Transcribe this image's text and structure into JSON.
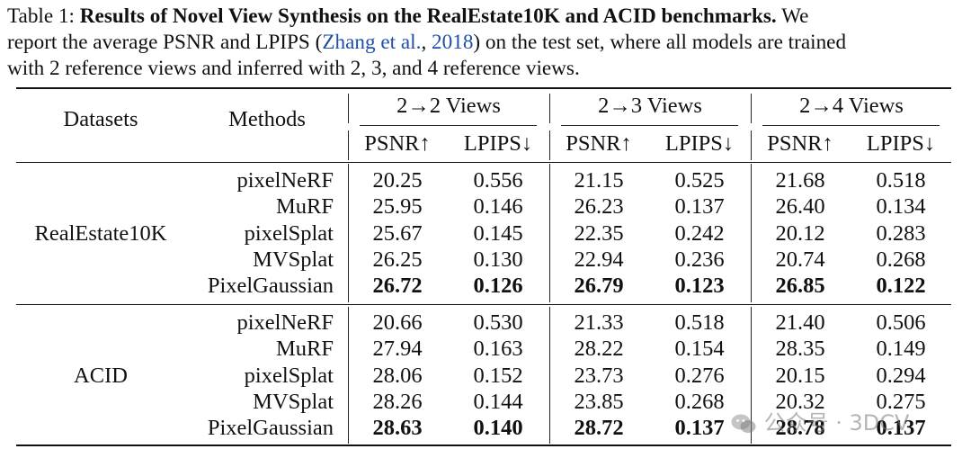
{
  "caption": {
    "prefix": "Table 1: ",
    "title": "Results of Novel View Synthesis on the RealEstate10K and ACID benchmarks.",
    "line1_end": " We",
    "line2_start": "report the average PSNR and LPIPS (",
    "cite_author": "Zhang et al.",
    "cite_sep": ", ",
    "cite_year": "2018",
    "line2_end": ") on the test set, where all models are trained",
    "line3": "with 2 reference views and inferred with 2, 3, and 4 reference views."
  },
  "header": {
    "datasets": "Datasets",
    "methods": "Methods",
    "groups": [
      "2→2 Views",
      "2→3 Views",
      "2→4 Views"
    ],
    "metrics": [
      "PSNR↑",
      "LPIPS↓",
      "PSNR↑",
      "LPIPS↓",
      "PSNR↑",
      "LPIPS↓"
    ]
  },
  "blocks": [
    {
      "dataset": "RealEstate10K",
      "rows": [
        {
          "method": "pixelNeRF",
          "values": [
            "20.25",
            "0.556",
            "21.15",
            "0.525",
            "21.68",
            "0.518"
          ]
        },
        {
          "method": "MuRF",
          "values": [
            "25.95",
            "0.146",
            "26.23",
            "0.137",
            "26.40",
            "0.134"
          ]
        },
        {
          "method": "pixelSplat",
          "values": [
            "25.67",
            "0.145",
            "22.35",
            "0.242",
            "20.12",
            "0.283"
          ]
        },
        {
          "method": "MVSplat",
          "values": [
            "26.25",
            "0.130",
            "22.94",
            "0.236",
            "20.74",
            "0.268"
          ]
        },
        {
          "method": "PixelGaussian",
          "values": [
            "26.72",
            "0.126",
            "26.79",
            "0.123",
            "26.85",
            "0.122"
          ],
          "bold": true
        }
      ]
    },
    {
      "dataset": "ACID",
      "rows": [
        {
          "method": "pixelNeRF",
          "values": [
            "20.66",
            "0.530",
            "21.33",
            "0.518",
            "21.40",
            "0.506"
          ]
        },
        {
          "method": "MuRF",
          "values": [
            "27.94",
            "0.163",
            "28.22",
            "0.154",
            "28.35",
            "0.149"
          ]
        },
        {
          "method": "pixelSplat",
          "values": [
            "28.06",
            "0.152",
            "23.73",
            "0.276",
            "20.15",
            "0.294"
          ]
        },
        {
          "method": "MVSplat",
          "values": [
            "28.26",
            "0.144",
            "23.85",
            "0.268",
            "20.32",
            "0.275"
          ]
        },
        {
          "method": "PixelGaussian",
          "values": [
            "28.63",
            "0.140",
            "28.72",
            "0.137",
            "28.78",
            "0.137"
          ],
          "bold": true
        }
      ]
    }
  ],
  "watermark": "公众号 · 3DCV"
}
